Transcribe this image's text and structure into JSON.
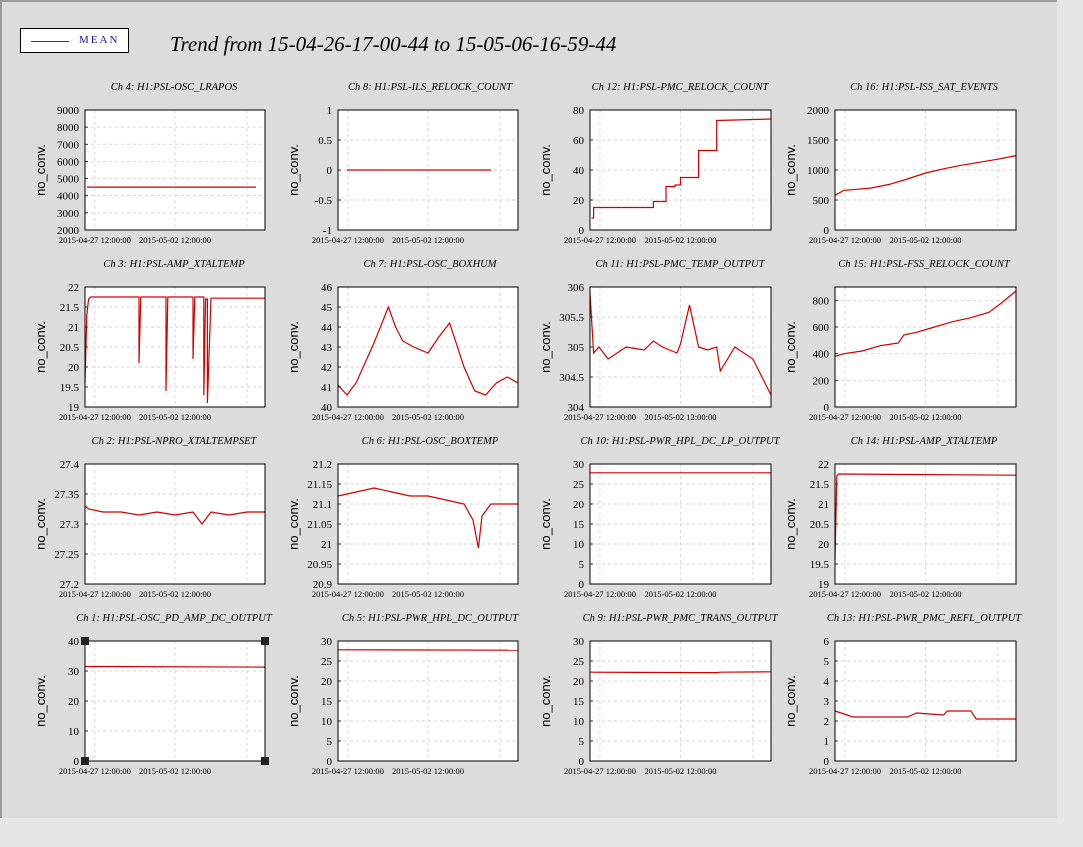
{
  "window": {
    "title": "Trend from 15-04-26-17-00-44 to 15-05-06-16-59-44",
    "legend_label": "MEAN",
    "accent_color": "#d00000"
  },
  "chart_data": [
    {
      "type": "line",
      "title": "Ch 4: H1:PSL-OSC_LRAPOS",
      "ylabel": "no_conv.",
      "ylim": [
        2000,
        9000
      ],
      "yticks": [
        2000,
        3000,
        4000,
        5000,
        6000,
        7000,
        8000,
        9000
      ],
      "xticklabels": [
        "2015-04-27 12:00:00",
        "2015-05-02 12:00:00"
      ],
      "series": [
        {
          "x": [
            0.01,
            0.95
          ],
          "values": [
            4500,
            4500
          ]
        }
      ]
    },
    {
      "type": "line",
      "title": "Ch 8: H1:PSL-ILS_RELOCK_COUNT",
      "ylabel": "no_conv.",
      "ylim": [
        -1,
        1
      ],
      "yticks": [
        -1,
        -0.5,
        0,
        0.5,
        1
      ],
      "xticklabels": [
        "2015-04-27 12:00:00",
        "2015-05-02 12:00:00"
      ],
      "series": [
        {
          "x": [
            0.05,
            0.85
          ],
          "values": [
            0,
            0
          ]
        }
      ]
    },
    {
      "type": "line",
      "title": "Ch 12: H1:PSL-PMC_RELOCK_COUNT",
      "ylabel": "no_conv.",
      "ylim": [
        0,
        80
      ],
      "yticks": [
        0,
        20,
        40,
        60,
        80
      ],
      "xticklabels": [
        "2015-04-27 12:00:00",
        "2015-05-02 12:00:00"
      ],
      "series": [
        {
          "x": [
            0.01,
            0.02,
            0.02,
            0.35,
            0.35,
            0.42,
            0.42,
            0.47,
            0.47,
            0.5,
            0.5,
            0.52,
            0.52,
            0.6,
            0.6,
            0.7,
            0.7,
            1
          ],
          "values": [
            8,
            8,
            15,
            15,
            19,
            19,
            29,
            29,
            30,
            30,
            35,
            35,
            35,
            35,
            53,
            53,
            73,
            74
          ]
        }
      ]
    },
    {
      "type": "line",
      "title": "Ch 16: H1:PSL-ISS_SAT_EVENTS",
      "ylabel": "no_conv.",
      "ylim": [
        0,
        2000
      ],
      "yticks": [
        0,
        500,
        1000,
        1500,
        2000
      ],
      "xticklabels": [
        "2015-04-27 12:00:00",
        "2015-05-02 12:00:00"
      ],
      "series": [
        {
          "x": [
            0,
            0.05,
            0.2,
            0.3,
            0.4,
            0.5,
            0.6,
            0.7,
            0.8,
            0.9,
            1
          ],
          "values": [
            580,
            660,
            700,
            760,
            850,
            950,
            1020,
            1080,
            1130,
            1180,
            1240
          ]
        }
      ]
    },
    {
      "type": "line",
      "title": "Ch 3: H1:PSL-AMP_XTALTEMP",
      "ylabel": "no_conv.",
      "ylim": [
        19,
        22
      ],
      "yticks": [
        19,
        19.5,
        20,
        20.5,
        21,
        21.5,
        22
      ],
      "xticklabels": [
        "2015-04-27 12:00:00",
        "2015-05-02 12:00:00"
      ],
      "series": [
        {
          "x": [
            0,
            0.01,
            0.02,
            0.03,
            0.3,
            0.3,
            0.31,
            0.45,
            0.45,
            0.46,
            0.6,
            0.6,
            0.61,
            0.66,
            0.66,
            0.67,
            0.68,
            0.68,
            0.7,
            1
          ],
          "values": [
            19.6,
            21.3,
            21.7,
            21.75,
            21.75,
            20.1,
            21.75,
            21.75,
            19.4,
            21.75,
            21.75,
            20.2,
            21.75,
            21.75,
            19.3,
            21.7,
            21.7,
            19.1,
            21.72,
            21.72
          ]
        }
      ]
    },
    {
      "type": "line",
      "title": "Ch 7: H1:PSL-OSC_BOXHUM",
      "ylabel": "no_conv.",
      "ylim": [
        40,
        46
      ],
      "yticks": [
        40,
        41,
        42,
        43,
        44,
        45,
        46
      ],
      "xticklabels": [
        "2015-04-27 12:00:00",
        "2015-05-02 12:00:00"
      ],
      "series": [
        {
          "x": [
            0,
            0.05,
            0.1,
            0.2,
            0.28,
            0.32,
            0.36,
            0.42,
            0.5,
            0.56,
            0.62,
            0.7,
            0.76,
            0.82,
            0.88,
            0.94,
            1
          ],
          "values": [
            41.1,
            40.6,
            41.2,
            43.2,
            45,
            44,
            43.3,
            43,
            42.7,
            43.5,
            44.2,
            42,
            40.8,
            40.6,
            41.2,
            41.5,
            41.2
          ]
        }
      ]
    },
    {
      "type": "line",
      "title": "Ch 11: H1:PSL-PMC_TEMP_OUTPUT",
      "ylabel": "no_conv.",
      "ylim": [
        304,
        306
      ],
      "yticks": [
        304,
        304.5,
        305,
        305.5,
        306
      ],
      "xticklabels": [
        "2015-04-27 12:00:00",
        "2015-05-02 12:00:00"
      ],
      "series": [
        {
          "x": [
            0,
            0.02,
            0.05,
            0.1,
            0.2,
            0.3,
            0.35,
            0.4,
            0.48,
            0.5,
            0.55,
            0.6,
            0.65,
            0.7,
            0.72,
            0.8,
            0.85,
            0.9,
            1
          ],
          "values": [
            305.9,
            304.9,
            305,
            304.8,
            305,
            304.95,
            305.1,
            305,
            304.9,
            305.05,
            305.7,
            305.0,
            304.95,
            305.0,
            304.6,
            305.0,
            304.9,
            304.8,
            304.2
          ]
        }
      ]
    },
    {
      "type": "line",
      "title": "Ch 15: H1:PSL-FSS_RELOCK_COUNT",
      "ylabel": "no_conv.",
      "ylim": [
        0,
        900
      ],
      "yticks": [
        0,
        200,
        400,
        600,
        800
      ],
      "xticklabels": [
        "2015-04-27 12:00:00",
        "2015-05-02 12:00:00"
      ],
      "series": [
        {
          "x": [
            0,
            0.05,
            0.15,
            0.25,
            0.35,
            0.38,
            0.45,
            0.55,
            0.65,
            0.75,
            0.85,
            0.92,
            1
          ],
          "values": [
            380,
            400,
            420,
            460,
            480,
            540,
            560,
            600,
            640,
            670,
            710,
            780,
            870
          ]
        }
      ]
    },
    {
      "type": "line",
      "title": "Ch 2: H1:PSL-NPRO_XTALTEMPSET",
      "ylabel": "no_conv.",
      "ylim": [
        27.2,
        27.4
      ],
      "yticks": [
        27.2,
        27.25,
        27.3,
        27.35,
        27.4
      ],
      "xticklabels": [
        "2015-04-27 12:00:00",
        "2015-05-02 12:00:00"
      ],
      "series": [
        {
          "x": [
            0,
            0.02,
            0.1,
            0.2,
            0.3,
            0.4,
            0.5,
            0.6,
            0.65,
            0.7,
            0.8,
            0.9,
            1
          ],
          "values": [
            27.33,
            27.325,
            27.32,
            27.32,
            27.315,
            27.32,
            27.315,
            27.32,
            27.3,
            27.32,
            27.315,
            27.32,
            27.32
          ]
        }
      ]
    },
    {
      "type": "line",
      "title": "Ch 6: H1:PSL-OSC_BOXTEMP",
      "ylabel": "no_conv.",
      "ylim": [
        20.9,
        21.2
      ],
      "yticks": [
        20.9,
        20.95,
        21,
        21.05,
        21.1,
        21.15,
        21.2
      ],
      "xticklabels": [
        "2015-04-27 12:00:00",
        "2015-05-02 12:00:00"
      ],
      "series": [
        {
          "x": [
            0,
            0.1,
            0.2,
            0.3,
            0.4,
            0.5,
            0.6,
            0.7,
            0.75,
            0.78,
            0.8,
            0.85,
            0.9,
            1
          ],
          "values": [
            21.12,
            21.13,
            21.14,
            21.13,
            21.12,
            21.12,
            21.11,
            21.1,
            21.06,
            20.99,
            21.07,
            21.1,
            21.1,
            21.1
          ]
        }
      ]
    },
    {
      "type": "line",
      "title": "Ch 10: H1:PSL-PWR_HPL_DC_LP_OUTPUT",
      "ylabel": "no_conv.",
      "ylim": [
        0,
        30
      ],
      "yticks": [
        0,
        5,
        10,
        15,
        20,
        25,
        30
      ],
      "xticklabels": [
        "2015-04-27 12:00:00",
        "2015-05-02 12:00:00"
      ],
      "series": [
        {
          "x": [
            0,
            1
          ],
          "values": [
            27.8,
            27.8
          ]
        }
      ]
    },
    {
      "type": "line",
      "title": "Ch 14: H1:PSL-AMP_XTALTEMP",
      "ylabel": "no_conv.",
      "ylim": [
        19,
        22
      ],
      "yticks": [
        19,
        19.5,
        20,
        20.5,
        21,
        21.5,
        22
      ],
      "xticklabels": [
        "2015-04-27 12:00:00",
        "2015-05-02 12:00:00"
      ],
      "series": [
        {
          "x": [
            0,
            0.01,
            0.02,
            1
          ],
          "values": [
            19.6,
            21.7,
            21.75,
            21.72
          ]
        }
      ]
    },
    {
      "type": "line",
      "title": "Ch 1: H1:PSL-OSC_PD_AMP_DC_OUTPUT",
      "ylabel": "no_conv.",
      "ylim": [
        0,
        40
      ],
      "yticks": [
        0,
        10,
        20,
        30,
        40
      ],
      "xticklabels": [
        "2015-04-27 12:00:00",
        "2015-05-02 12:00:00"
      ],
      "series": [
        {
          "x": [
            0,
            1
          ],
          "values": [
            31.5,
            31.3
          ]
        }
      ]
    },
    {
      "type": "line",
      "title": "Ch 5: H1:PSL-PWR_HPL_DC_OUTPUT",
      "ylabel": "no_conv.",
      "ylim": [
        0,
        30
      ],
      "yticks": [
        0,
        5,
        10,
        15,
        20,
        25,
        30
      ],
      "xticklabels": [
        "2015-04-27 12:00:00",
        "2015-05-02 12:00:00"
      ],
      "series": [
        {
          "x": [
            0,
            1
          ],
          "values": [
            27.8,
            27.7
          ]
        }
      ]
    },
    {
      "type": "line",
      "title": "Ch 9: H1:PSL-PWR_PMC_TRANS_OUTPUT",
      "ylabel": "no_conv.",
      "ylim": [
        0,
        30
      ],
      "yticks": [
        0,
        5,
        10,
        15,
        20,
        25,
        30
      ],
      "xticklabels": [
        "2015-04-27 12:00:00",
        "2015-05-02 12:00:00"
      ],
      "series": [
        {
          "x": [
            0,
            0.7,
            0.72,
            1
          ],
          "values": [
            22.2,
            22.1,
            22.2,
            22.3
          ]
        }
      ]
    },
    {
      "type": "line",
      "title": "Ch 13: H1:PSL-PWR_PMC_REFL_OUTPUT",
      "ylabel": "no_conv.",
      "ylim": [
        0,
        6
      ],
      "yticks": [
        0,
        1,
        2,
        3,
        4,
        5,
        6
      ],
      "xticklabels": [
        "2015-04-27 12:00:00",
        "2015-05-02 12:00:00"
      ],
      "series": [
        {
          "x": [
            0,
            0.1,
            0.4,
            0.45,
            0.6,
            0.62,
            0.75,
            0.78,
            1
          ],
          "values": [
            2.5,
            2.2,
            2.2,
            2.4,
            2.3,
            2.5,
            2.5,
            2.1,
            2.1
          ]
        }
      ]
    }
  ]
}
